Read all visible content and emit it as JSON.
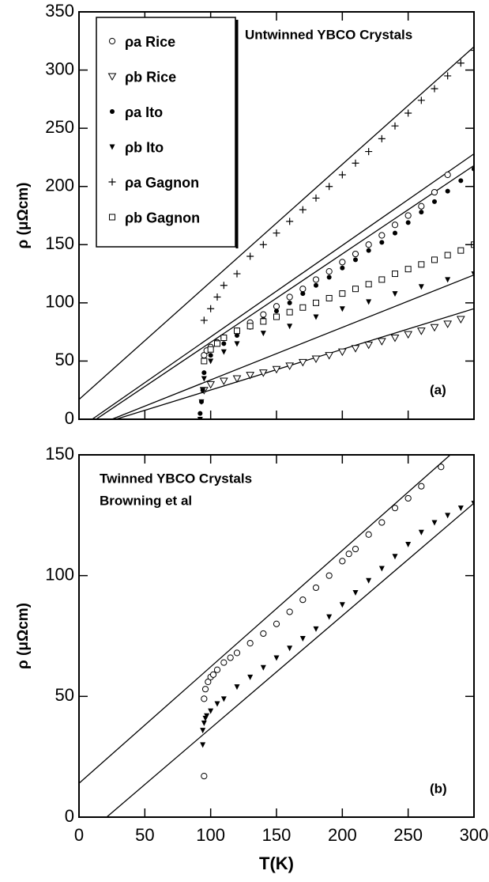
{
  "chart_data": [
    {
      "type": "scatter",
      "title": "Untwinned  YBCO Crystals",
      "panel_label": "(a)",
      "ylabel": "ρ (μΩcm)",
      "xlim": [
        0,
        300
      ],
      "ylim": [
        0,
        350
      ],
      "xticks": [
        0,
        50,
        100,
        150,
        200,
        250,
        300
      ],
      "yticks": [
        0,
        50,
        100,
        150,
        200,
        250,
        300,
        350
      ],
      "show_xtick_labels": false,
      "series": [
        {
          "name": "ρa Rice",
          "marker": "circle-open",
          "color": "#000000",
          "x": [
            95,
            97,
            100,
            105,
            110,
            120,
            130,
            140,
            150,
            160,
            170,
            180,
            190,
            200,
            210,
            220,
            230,
            240,
            250,
            260,
            270,
            280
          ],
          "values": [
            55,
            59,
            62,
            66,
            70,
            76,
            83,
            90,
            97,
            105,
            112,
            120,
            127,
            135,
            142,
            150,
            158,
            167,
            175,
            183,
            195,
            210
          ]
        },
        {
          "name": "ρb Rice",
          "marker": "tri-open",
          "color": "#000000",
          "x": [
            95,
            100,
            110,
            120,
            130,
            140,
            150,
            160,
            170,
            180,
            190,
            200,
            210,
            220,
            230,
            240,
            250,
            260,
            270,
            280,
            290
          ],
          "values": [
            25,
            30,
            33,
            35,
            38,
            40,
            43,
            46,
            49,
            52,
            55,
            58,
            61,
            64,
            67,
            70,
            73,
            76,
            79,
            82,
            86
          ]
        },
        {
          "name": "ρa Ito",
          "marker": "circle-filled",
          "color": "#000000",
          "x": [
            92,
            93,
            94,
            95,
            100,
            110,
            120,
            130,
            140,
            150,
            160,
            170,
            180,
            190,
            200,
            210,
            220,
            230,
            240,
            250,
            260,
            270,
            280,
            290,
            300
          ],
          "values": [
            5,
            15,
            25,
            40,
            55,
            65,
            72,
            79,
            86,
            93,
            100,
            108,
            115,
            122,
            130,
            137,
            145,
            152,
            160,
            169,
            178,
            187,
            196,
            205,
            215
          ]
        },
        {
          "name": "ρb Ito",
          "marker": "tri-filled",
          "color": "#000000",
          "x": [
            92,
            93,
            94,
            95,
            100,
            110,
            120,
            140,
            160,
            180,
            200,
            220,
            240,
            260,
            280,
            300
          ],
          "values": [
            0,
            15,
            25,
            35,
            50,
            58,
            65,
            74,
            80,
            88,
            95,
            101,
            108,
            114,
            120,
            125
          ]
        },
        {
          "name": "ρa  Gagnon",
          "marker": "plus",
          "color": "#000000",
          "x": [
            95,
            100,
            105,
            110,
            120,
            130,
            140,
            150,
            160,
            170,
            180,
            190,
            200,
            210,
            220,
            230,
            240,
            250,
            260,
            270,
            280,
            290,
            300
          ],
          "values": [
            85,
            95,
            105,
            115,
            125,
            140,
            150,
            160,
            170,
            180,
            190,
            200,
            210,
            220,
            230,
            241,
            252,
            263,
            274,
            284,
            295,
            306,
            317
          ]
        },
        {
          "name": "ρb  Gagnon",
          "marker": "square-open",
          "color": "#000000",
          "x": [
            95,
            100,
            105,
            110,
            120,
            130,
            140,
            150,
            160,
            170,
            180,
            190,
            200,
            210,
            220,
            230,
            240,
            250,
            260,
            270,
            280,
            290,
            300
          ],
          "values": [
            50,
            60,
            65,
            70,
            76,
            80,
            84,
            88,
            92,
            96,
            100,
            104,
            108,
            112,
            116,
            120,
            125,
            129,
            133,
            137,
            141,
            145,
            150
          ]
        }
      ],
      "fits": [
        {
          "x": [
            0,
            300
          ],
          "values": [
            17,
            320
          ]
        },
        {
          "x": [
            10,
            300
          ],
          "values": [
            0,
            228
          ]
        },
        {
          "x": [
            13,
            300
          ],
          "values": [
            0,
            218
          ]
        },
        {
          "x": [
            25,
            300
          ],
          "values": [
            0,
            124
          ]
        },
        {
          "x": [
            28,
            300
          ],
          "values": [
            0,
            95
          ]
        }
      ]
    },
    {
      "type": "scatter",
      "title": "Twinned YBCO Crystals",
      "subtitle": "Browning et al",
      "panel_label": "(b)",
      "ylabel": "ρ (μΩcm)",
      "xlabel": "T(K)",
      "xlim": [
        0,
        300
      ],
      "ylim": [
        0,
        150
      ],
      "xticks": [
        0,
        50,
        100,
        150,
        200,
        250,
        300
      ],
      "yticks": [
        0,
        50,
        100,
        150
      ],
      "show_xtick_labels": true,
      "series": [
        {
          "marker": "circle-open",
          "color": "#000000",
          "x": [
            95,
            95,
            96,
            98,
            100,
            102,
            105,
            110,
            115,
            120,
            130,
            140,
            150,
            160,
            170,
            180,
            190,
            200,
            205,
            210,
            220,
            230,
            240,
            250,
            260,
            275
          ],
          "values": [
            17,
            49,
            53,
            56,
            58,
            59,
            61,
            64,
            66,
            68,
            72,
            76,
            80,
            85,
            90,
            95,
            100,
            106,
            109,
            111,
            117,
            122,
            128,
            132,
            137,
            145
          ]
        },
        {
          "marker": "tri-filled",
          "color": "#000000",
          "x": [
            94,
            94,
            95,
            96,
            97,
            100,
            105,
            110,
            120,
            130,
            140,
            150,
            160,
            170,
            180,
            190,
            200,
            210,
            220,
            230,
            240,
            250,
            260,
            270,
            280,
            290,
            300
          ],
          "values": [
            30,
            36,
            39,
            41,
            42,
            44,
            47,
            49,
            54,
            58,
            62,
            66,
            70,
            74,
            78,
            83,
            88,
            93,
            98,
            103,
            108,
            113,
            118,
            122,
            125,
            128,
            130
          ]
        }
      ],
      "fits": [
        {
          "x": [
            0,
            282
          ],
          "values": [
            14,
            150
          ]
        },
        {
          "x": [
            21,
            300
          ],
          "values": [
            0,
            130
          ]
        }
      ]
    }
  ]
}
